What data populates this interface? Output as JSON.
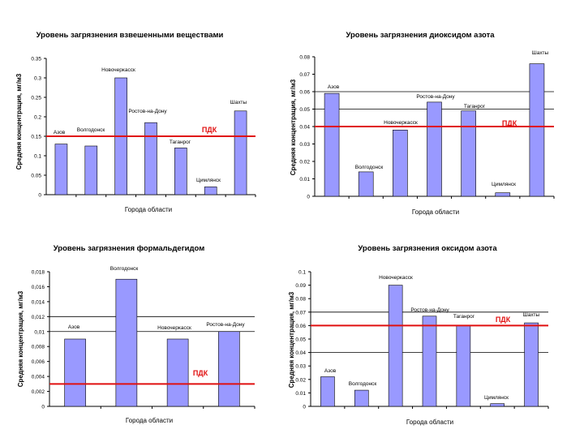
{
  "colors": {
    "bar": "#9999ff",
    "bar_edge": "#000000",
    "pdk_line": "#e01010",
    "pdk_text": "#e01010",
    "grid": "#000000"
  },
  "chart_data": [
    {
      "type": "bar",
      "title": "Уровень загрязнения взвешенными веществами",
      "ylabel": "Средняя концентрация, мг/м3",
      "xlabel": "Города области",
      "ylim": [
        0,
        0.35
      ],
      "ticks": [
        "0",
        "0.05",
        "0.1",
        "0.15",
        "0.2",
        "0.25",
        "0.3",
        "0.35"
      ],
      "gridlines": [],
      "categories": [
        "Азов",
        "Волгодонск",
        "Новочеркасск",
        "Ростов-на-Дону",
        "Таганрог",
        "Цимлянск",
        "Шахты"
      ],
      "values": [
        0.13,
        0.125,
        0.3,
        0.185,
        0.12,
        0.02,
        0.215
      ],
      "pdk": {
        "label": "ПДК",
        "value": 0.15
      }
    },
    {
      "type": "bar",
      "title": "Уровень загрязнения диоксидом азота",
      "ylabel": "Средняя концентрация, мг/м3",
      "xlabel": "Города области",
      "ylim": [
        0,
        0.08
      ],
      "ticks": [
        "0",
        "0.01",
        "0.02",
        "0.03",
        "0.04",
        "0.05",
        "0.06",
        "0.07",
        "0.08"
      ],
      "gridlines": [
        0.05,
        0.06
      ],
      "categories": [
        "Азов",
        "Волгодонск",
        "Новочеркасск",
        "Ростов-на-Дону",
        "Таганрог",
        "Цимлянск",
        "Шахты"
      ],
      "values": [
        0.059,
        0.014,
        0.038,
        0.054,
        0.049,
        0.002,
        0.076
      ],
      "pdk": {
        "label": "ПДК",
        "value": 0.04
      }
    },
    {
      "type": "bar",
      "title": "Уровень загрязнения формальдегидом",
      "ylabel": "Средняя концентрация, мг/м3",
      "xlabel": "Города области",
      "ylim": [
        0,
        0.018
      ],
      "ticks": [
        "0",
        "0,002",
        "0,004",
        "0,006",
        "0,008",
        "0,01",
        "0,012",
        "0,014",
        "0,016",
        "0,018"
      ],
      "gridlines": [
        0.01,
        0.012
      ],
      "categories": [
        "Азов",
        "Волгодонск",
        "Новочеркасск",
        "Ростов-на-Дону"
      ],
      "values": [
        0.009,
        0.017,
        0.009,
        0.01
      ],
      "pdk": {
        "label": "ПДК",
        "value": 0.003
      }
    },
    {
      "type": "bar",
      "title": "Уровень загрязнения оксидом азота",
      "ylabel": "Средняя концентрация, мг/м3",
      "xlabel": "Города области",
      "ylim": [
        0,
        0.1
      ],
      "ticks": [
        "0",
        "0.01",
        "0.02",
        "0.03",
        "0.04",
        "0.05",
        "0.06",
        "0.07",
        "0.08",
        "0.09",
        "0.1"
      ],
      "gridlines": [
        0.04,
        0.07
      ],
      "categories": [
        "Азов",
        "Волгодонск",
        "Новочеркасск",
        "Ростов-на-Дону",
        "Таганрог",
        "Цимлянск",
        "Шахты"
      ],
      "values": [
        0.022,
        0.012,
        0.09,
        0.067,
        0.06,
        0.002,
        0.062
      ],
      "pdk": {
        "label": "ПДК",
        "value": 0.06
      }
    }
  ]
}
